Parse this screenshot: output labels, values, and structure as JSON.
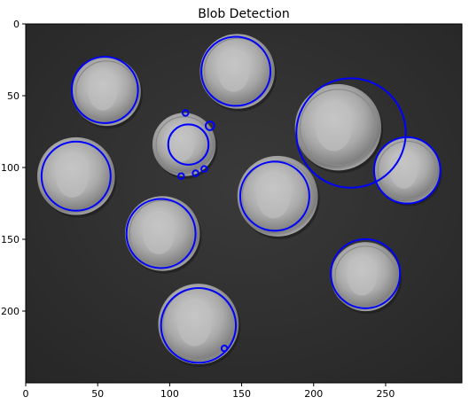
{
  "chart_data": {
    "type": "scatter",
    "title": "Blob Detection",
    "xlabel": "",
    "ylabel": "",
    "xlim": [
      0,
      303
    ],
    "ylim": [
      0,
      250
    ],
    "y_inverted": true,
    "grid": false,
    "legend": "none",
    "xticks": [
      0,
      50,
      100,
      150,
      200,
      250
    ],
    "yticks": [
      0,
      50,
      100,
      150,
      200
    ],
    "x_tick_labels": [
      "0",
      "50",
      "100",
      "150",
      "200",
      "250"
    ],
    "y_tick_labels": [
      "0",
      "50",
      "100",
      "150",
      "200"
    ],
    "background_image": "grayscale photo of coins on dark background",
    "coins": [
      {
        "x": 56,
        "y": 47,
        "r": 24,
        "kind": "quarter"
      },
      {
        "x": 147,
        "y": 33,
        "r": 26,
        "kind": "quarter"
      },
      {
        "x": 110,
        "y": 84,
        "r": 22,
        "kind": "dime"
      },
      {
        "x": 217,
        "y": 72,
        "r": 30,
        "kind": "quarter"
      },
      {
        "x": 35,
        "y": 106,
        "r": 27,
        "kind": "quarter"
      },
      {
        "x": 175,
        "y": 120,
        "r": 28,
        "kind": "quarter"
      },
      {
        "x": 265,
        "y": 102,
        "r": 23,
        "kind": "quarter"
      },
      {
        "x": 95,
        "y": 146,
        "r": 26,
        "kind": "quarter"
      },
      {
        "x": 236,
        "y": 176,
        "r": 24,
        "kind": "dime"
      },
      {
        "x": 120,
        "y": 209,
        "r": 28,
        "kind": "quarter"
      }
    ],
    "series": [
      {
        "marker": "circle-outline",
        "color": "#0000ff",
        "points": [
          {
            "x": 55,
            "y": 46,
            "r": 23
          },
          {
            "x": 146,
            "y": 33,
            "r": 24
          },
          {
            "x": 113,
            "y": 84,
            "r": 14
          },
          {
            "x": 111,
            "y": 62,
            "r": 2
          },
          {
            "x": 128,
            "y": 71,
            "r": 3
          },
          {
            "x": 108,
            "y": 106,
            "r": 2
          },
          {
            "x": 118,
            "y": 104,
            "r": 2
          },
          {
            "x": 124,
            "y": 101,
            "r": 2
          },
          {
            "x": 226,
            "y": 76,
            "r": 38
          },
          {
            "x": 35,
            "y": 106,
            "r": 24
          },
          {
            "x": 173,
            "y": 120,
            "r": 24
          },
          {
            "x": 265,
            "y": 102,
            "r": 23
          },
          {
            "x": 94,
            "y": 146,
            "r": 24
          },
          {
            "x": 236,
            "y": 174,
            "r": 24
          },
          {
            "x": 120,
            "y": 210,
            "r": 26
          },
          {
            "x": 138,
            "y": 226,
            "r": 2
          }
        ]
      }
    ]
  }
}
